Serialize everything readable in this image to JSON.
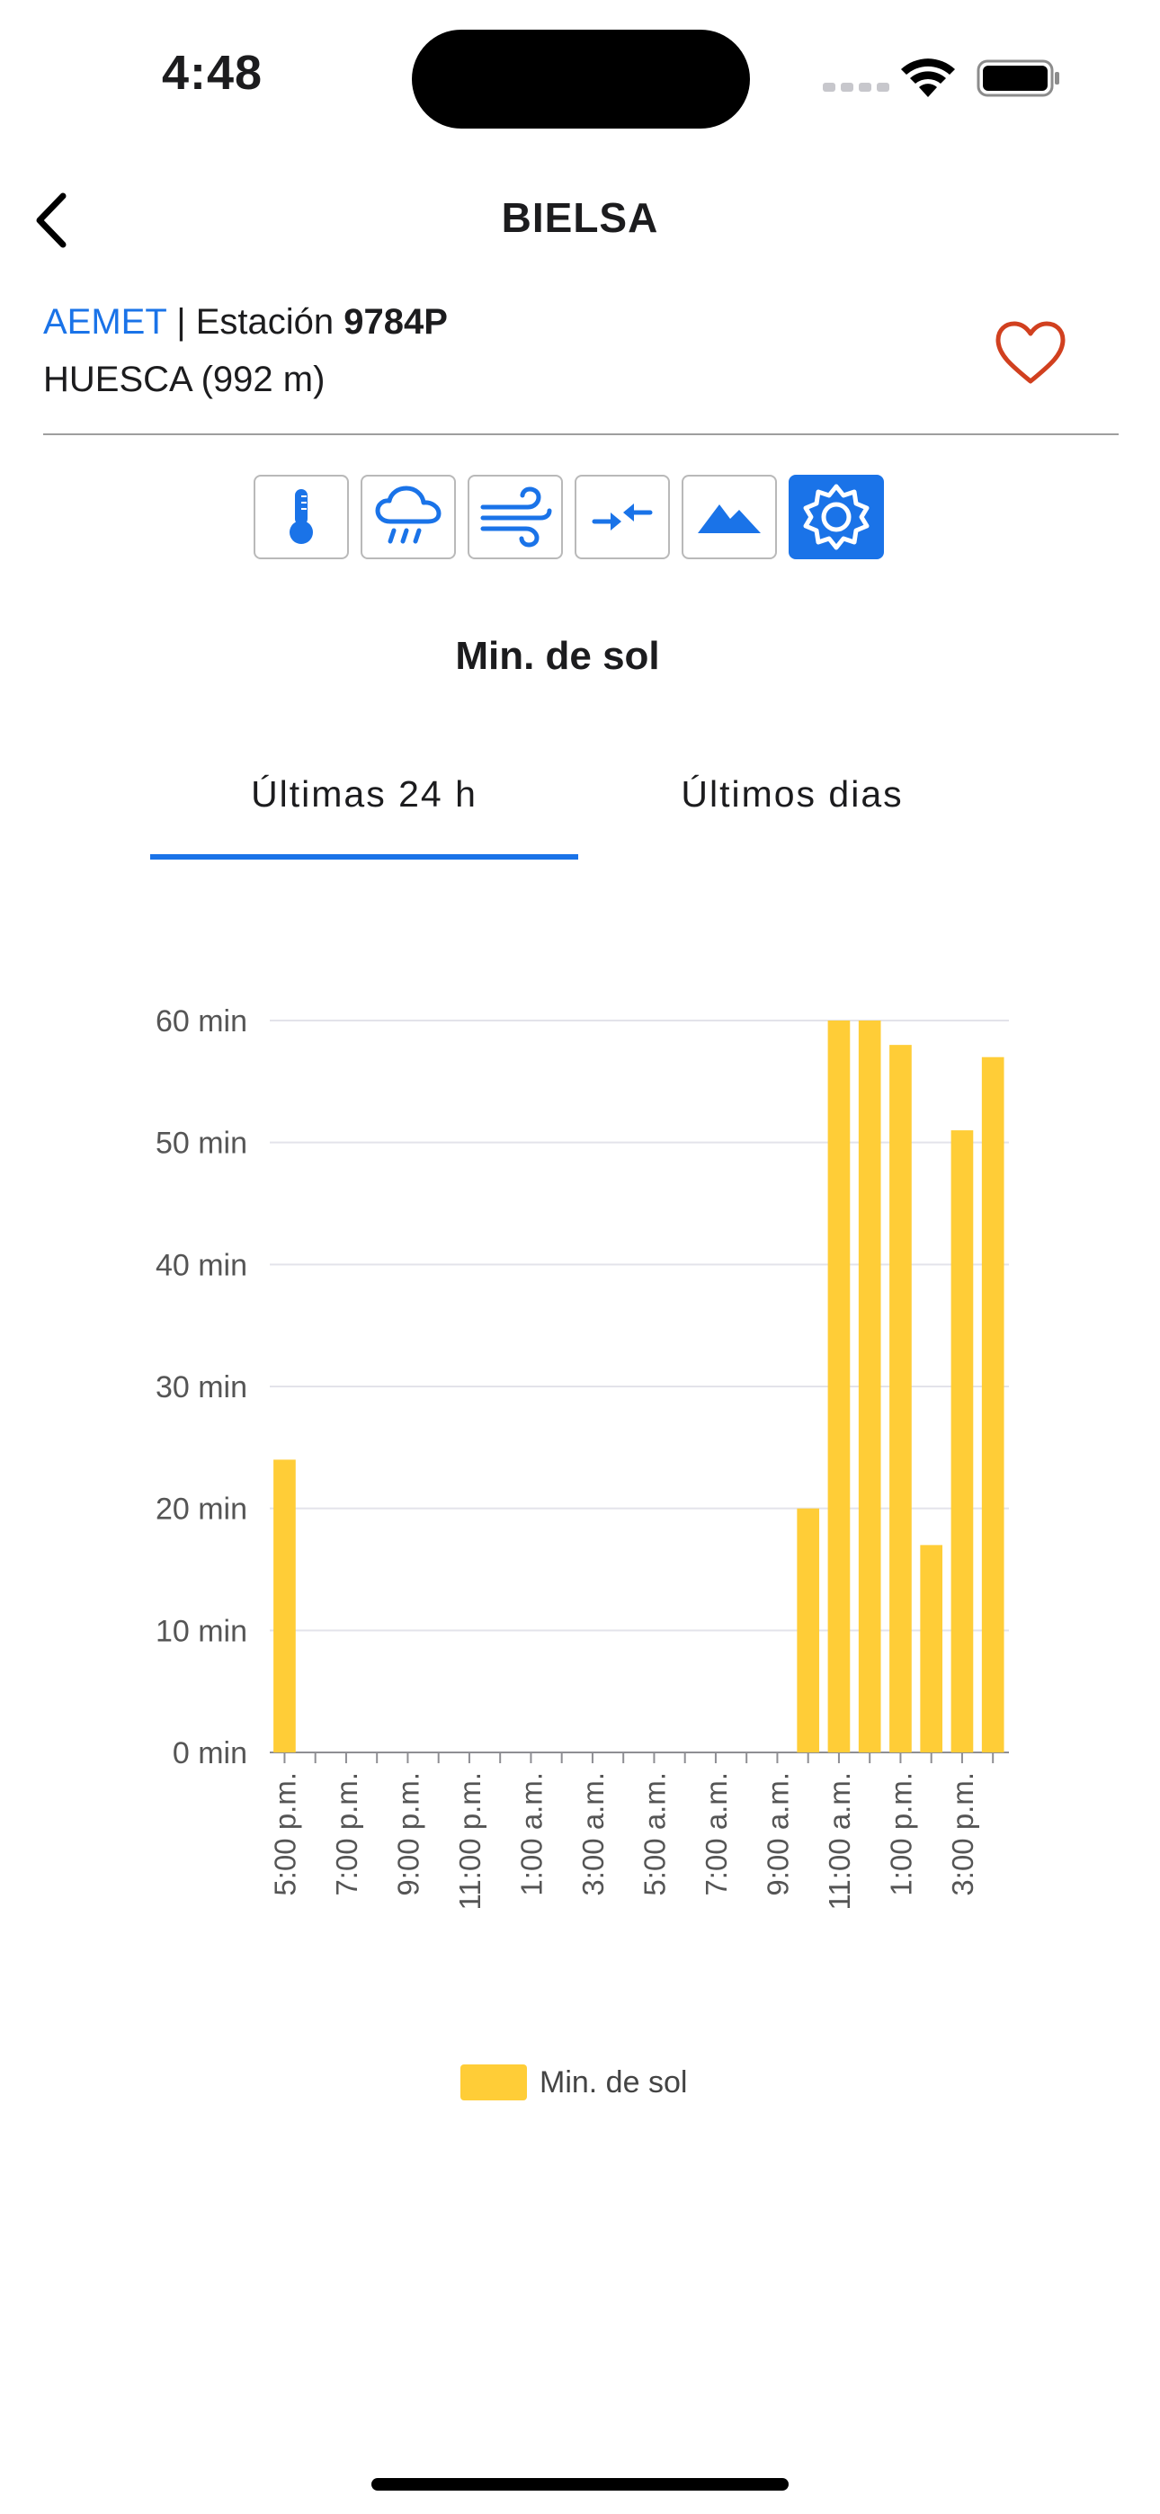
{
  "status_bar": {
    "time": "4:48"
  },
  "nav": {
    "title": "BIELSA",
    "back_icon": "chevron-left-icon"
  },
  "station": {
    "source": "AEMET",
    "separator": " | ",
    "label": "Estación ",
    "code": "9784P",
    "region": "HUESCA (992 m)",
    "favorite_icon": "heart-outline-icon",
    "favorite_color": "#d1401f"
  },
  "toolbar": {
    "buttons": [
      {
        "icon": "thermometer-icon",
        "active": false
      },
      {
        "icon": "rain-cloud-icon",
        "active": false
      },
      {
        "icon": "wind-icon",
        "active": false
      },
      {
        "icon": "pressure-arrows-icon",
        "active": false
      },
      {
        "icon": "mountain-icon",
        "active": false
      },
      {
        "icon": "sun-icon",
        "active": true
      }
    ],
    "accent_color": "#1a73e8"
  },
  "section": {
    "title": "Min. de sol"
  },
  "tabs": [
    {
      "label": "Últimas 24 h",
      "selected": true
    },
    {
      "label": "Últimos dias",
      "selected": false
    }
  ],
  "chart_data": {
    "type": "bar",
    "y_unit": "min",
    "ylim": [
      0,
      60
    ],
    "y_ticks": [
      "0 min",
      "10 min",
      "20 min",
      "30 min",
      "40 min",
      "50 min",
      "60 min"
    ],
    "x_tick_labels": [
      "5:00 p.m.",
      "7:00 p.m.",
      "9:00 p.m.",
      "11:00 p.m.",
      "1:00 a.m.",
      "3:00 a.m.",
      "5:00 a.m.",
      "7:00 a.m.",
      "9:00 a.m.",
      "11:00 a.m.",
      "1:00 p.m.",
      "3:00 p.m."
    ],
    "categories": [
      "5:00 p.m.",
      "6:00 p.m.",
      "7:00 p.m.",
      "8:00 p.m.",
      "9:00 p.m.",
      "10:00 p.m.",
      "11:00 p.m.",
      "12:00 a.m.",
      "1:00 a.m.",
      "2:00 a.m.",
      "3:00 a.m.",
      "4:00 a.m.",
      "5:00 a.m.",
      "6:00 a.m.",
      "7:00 a.m.",
      "8:00 a.m.",
      "9:00 a.m.",
      "10:00 a.m.",
      "11:00 a.m.",
      "12:00 p.m.",
      "1:00 p.m.",
      "2:00 p.m.",
      "3:00 p.m.",
      "4:00 p.m."
    ],
    "series": [
      {
        "name": "Min. de sol",
        "color": "#ffcd37",
        "values": [
          24,
          0,
          0,
          0,
          0,
          0,
          0,
          0,
          0,
          0,
          0,
          0,
          0,
          0,
          0,
          0,
          0,
          20,
          60,
          60,
          58,
          17,
          51,
          57
        ]
      }
    ],
    "grid": true,
    "legend": "bottom-center"
  }
}
